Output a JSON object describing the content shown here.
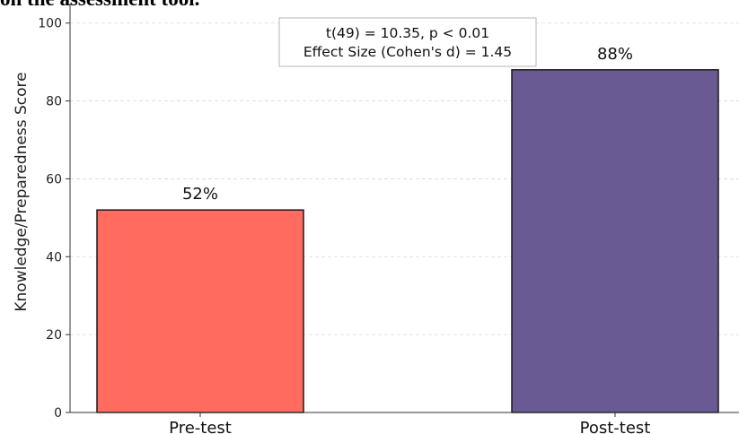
{
  "caption_fragment": "on the assessment tool.",
  "chart_data": {
    "type": "bar",
    "categories": [
      "Pre-test",
      "Post-test"
    ],
    "values": [
      52,
      88
    ],
    "data_labels": [
      "52%",
      "88%"
    ],
    "colors": [
      "#ff6b5e",
      "#6a5a93"
    ],
    "edge_color": "#1a1a1a",
    "ylabel": "Knowledge/Preparedness Score",
    "xlabel": "",
    "title": "",
    "ylim": [
      0,
      105
    ],
    "yticks": [
      0,
      20,
      40,
      60,
      80,
      100
    ],
    "grid": "y-dashed",
    "annotation": {
      "lines": [
        "t(49) = 10.35, p < 0.01",
        "Effect Size (Cohen's d) = 1.45"
      ],
      "placement": "top-center"
    }
  }
}
